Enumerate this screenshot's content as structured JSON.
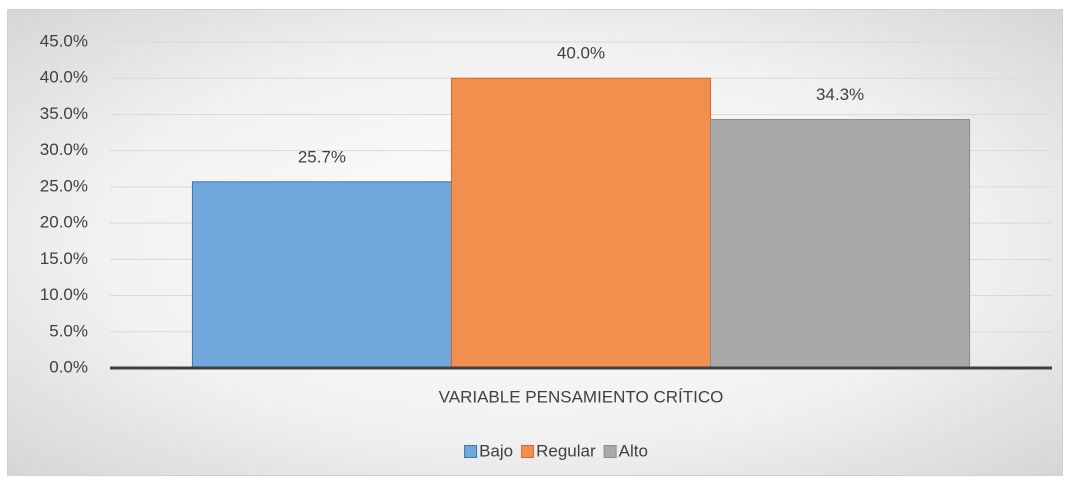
{
  "chart_data": {
    "type": "bar",
    "categories": [
      "VARIABLE PENSAMIENTO CRÍTICO"
    ],
    "series": [
      {
        "name": "Bajo",
        "color": "#70a7dd",
        "values": [
          25.7
        ],
        "value_labels": [
          "25.7%"
        ]
      },
      {
        "name": "Regular",
        "color": "#f08f4e",
        "values": [
          40.0
        ],
        "value_labels": [
          "40.0%"
        ]
      },
      {
        "name": "Alto",
        "color": "#a9a9a9",
        "values": [
          34.3
        ],
        "value_labels": [
          "34.3%"
        ]
      }
    ],
    "ylim": [
      0,
      45
    ],
    "yticks": [
      {
        "value": 0,
        "label": "0.0%"
      },
      {
        "value": 5,
        "label": "5.0%"
      },
      {
        "value": 10,
        "label": "10.0%"
      },
      {
        "value": 15,
        "label": "15.0%"
      },
      {
        "value": 20,
        "label": "20.0%"
      },
      {
        "value": 25,
        "label": "25.0%"
      },
      {
        "value": 30,
        "label": "30.0%"
      },
      {
        "value": 35,
        "label": "35.0%"
      },
      {
        "value": 40,
        "label": "40.0%"
      },
      {
        "value": 45,
        "label": "45.0%"
      }
    ],
    "grid": true,
    "legend": "bottom"
  }
}
